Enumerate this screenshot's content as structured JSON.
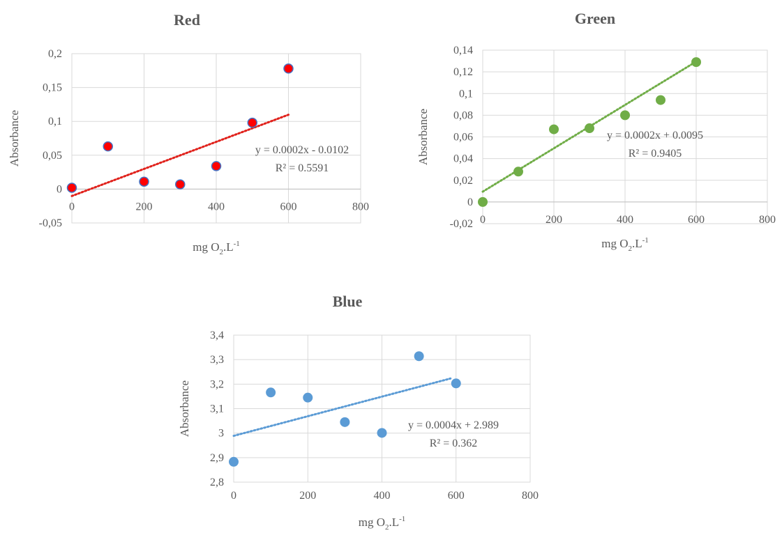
{
  "chart_data": [
    {
      "type": "scatter",
      "title": "Red",
      "xlabel": "mg O",
      "xlabel_sub": "2",
      "xlabel_rest": ".L",
      "xlabel_sup": "-1",
      "ylabel": "Absorbance",
      "xlim": [
        0,
        800
      ],
      "ylim": [
        -0.05,
        0.2
      ],
      "x_ticks": [
        "0",
        "200",
        "400",
        "600",
        "800"
      ],
      "y_ticks": [
        "-0,05",
        "0",
        "0,05",
        "0,1",
        "0,15",
        "0,2"
      ],
      "grid": true,
      "marker_color": "#ff0000",
      "marker_edge": "#4472c4",
      "trend_color": "#e0211b",
      "x": [
        0,
        100,
        200,
        300,
        400,
        500,
        600
      ],
      "y": [
        0.002,
        0.063,
        0.011,
        0.007,
        0.034,
        0.098,
        0.178
      ],
      "trendline": {
        "slope": 0.0002,
        "intercept": -0.0102,
        "x_range": [
          0,
          600
        ]
      },
      "equation": "y = 0.0002x - 0.0102",
      "r2": "R² = 0.5591"
    },
    {
      "type": "scatter",
      "title": "Green",
      "xlabel": "mg O",
      "xlabel_sub": "2",
      "xlabel_rest": ".L",
      "xlabel_sup": "-1",
      "ylabel": "Absorbance",
      "xlim": [
        0,
        800
      ],
      "ylim": [
        -0.02,
        0.14
      ],
      "x_ticks": [
        "0",
        "200",
        "400",
        "600",
        "800"
      ],
      "y_ticks": [
        "-0,02",
        "0",
        "0,02",
        "0,04",
        "0,06",
        "0,08",
        "0,1",
        "0,12",
        "0,14"
      ],
      "grid": true,
      "marker_color": "#70ad47",
      "marker_edge": "#70ad47",
      "trend_color": "#70ad47",
      "x": [
        0,
        100,
        200,
        300,
        400,
        500,
        600
      ],
      "y": [
        0.0,
        0.028,
        0.067,
        0.068,
        0.08,
        0.094,
        0.129
      ],
      "trendline": {
        "slope": 0.0002,
        "intercept": 0.0095,
        "x_range": [
          0,
          600
        ]
      },
      "equation": "y = 0.0002x + 0.0095",
      "r2": "R² = 0.9405"
    },
    {
      "type": "scatter",
      "title": "Blue",
      "xlabel": "mg O",
      "xlabel_sub": "2",
      "xlabel_rest": ".L",
      "xlabel_sup": "-1",
      "ylabel": "Absorbance",
      "xlim": [
        0,
        800
      ],
      "ylim": [
        2.8,
        3.4
      ],
      "x_ticks": [
        "0",
        "200",
        "400",
        "600",
        "800"
      ],
      "y_ticks": [
        "2,8",
        "2,9",
        "3",
        "3,1",
        "3,2",
        "3,3",
        "3,4"
      ],
      "grid": true,
      "marker_color": "#5b9bd5",
      "marker_edge": "#5b9bd5",
      "trend_color": "#5b9bd5",
      "x": [
        0,
        100,
        200,
        300,
        400,
        500,
        600
      ],
      "y": [
        2.883,
        3.166,
        3.145,
        3.045,
        3.001,
        3.314,
        3.203
      ],
      "trendline": {
        "slope": 0.0004,
        "intercept": 2.989,
        "x_range": [
          0,
          585
        ]
      },
      "equation": "y = 0.0004x + 2.989",
      "r2": "R² = 0.362"
    }
  ]
}
